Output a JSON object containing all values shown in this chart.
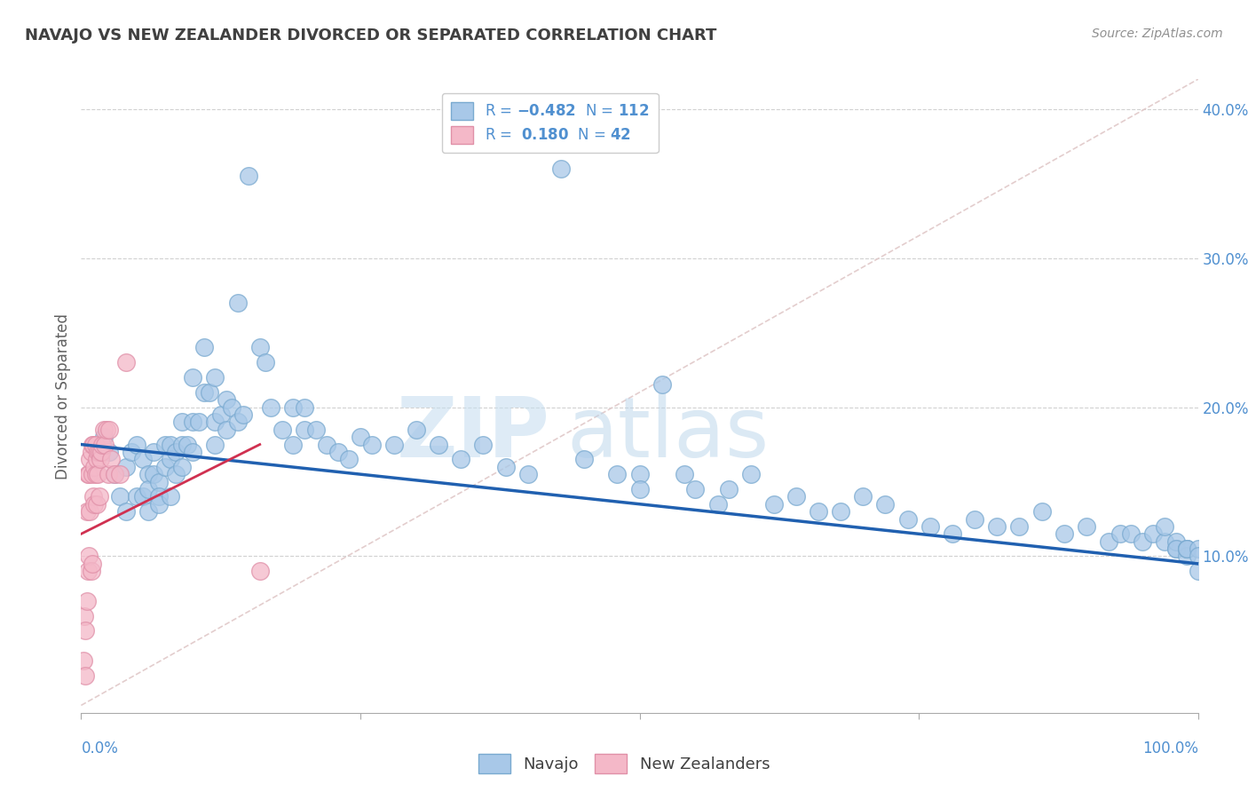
{
  "title": "NAVAJO VS NEW ZEALANDER DIVORCED OR SEPARATED CORRELATION CHART",
  "source": "Source: ZipAtlas.com",
  "ylabel": "Divorced or Separated",
  "xmin": 0.0,
  "xmax": 1.0,
  "ymin": -0.005,
  "ymax": 0.42,
  "navajo_R": -0.482,
  "navajo_N": 112,
  "nz_R": 0.18,
  "nz_N": 42,
  "navajo_color": "#a8c8e8",
  "nz_color": "#f4b8c8",
  "navajo_edge_color": "#7aaad0",
  "nz_edge_color": "#e090a8",
  "navajo_line_color": "#2060b0",
  "nz_line_color": "#d03050",
  "diagonal_color": "#e0c8c8",
  "watermark_zip": "#c8dff0",
  "watermark_atlas": "#b0cce0",
  "background_color": "#ffffff",
  "grid_color": "#cccccc",
  "title_color": "#404040",
  "axis_label_color": "#5090d0",
  "navajo_x": [
    0.02,
    0.025,
    0.03,
    0.035,
    0.04,
    0.04,
    0.045,
    0.05,
    0.05,
    0.055,
    0.055,
    0.06,
    0.06,
    0.06,
    0.065,
    0.065,
    0.07,
    0.07,
    0.07,
    0.075,
    0.075,
    0.08,
    0.08,
    0.08,
    0.085,
    0.085,
    0.09,
    0.09,
    0.09,
    0.095,
    0.1,
    0.1,
    0.1,
    0.105,
    0.11,
    0.11,
    0.115,
    0.12,
    0.12,
    0.12,
    0.125,
    0.13,
    0.13,
    0.135,
    0.14,
    0.14,
    0.145,
    0.15,
    0.16,
    0.165,
    0.17,
    0.18,
    0.19,
    0.19,
    0.2,
    0.2,
    0.21,
    0.22,
    0.23,
    0.24,
    0.25,
    0.26,
    0.28,
    0.3,
    0.32,
    0.34,
    0.36,
    0.38,
    0.4,
    0.43,
    0.45,
    0.48,
    0.5,
    0.5,
    0.52,
    0.54,
    0.55,
    0.57,
    0.58,
    0.6,
    0.62,
    0.64,
    0.66,
    0.68,
    0.7,
    0.72,
    0.74,
    0.76,
    0.78,
    0.8,
    0.82,
    0.84,
    0.86,
    0.88,
    0.9,
    0.92,
    0.93,
    0.94,
    0.95,
    0.96,
    0.97,
    0.97,
    0.98,
    0.98,
    0.98,
    0.99,
    0.99,
    0.99,
    0.99,
    1.0,
    1.0,
    1.0
  ],
  "navajo_y": [
    0.18,
    0.17,
    0.155,
    0.14,
    0.16,
    0.13,
    0.17,
    0.175,
    0.14,
    0.165,
    0.14,
    0.155,
    0.145,
    0.13,
    0.17,
    0.155,
    0.15,
    0.14,
    0.135,
    0.175,
    0.16,
    0.175,
    0.165,
    0.14,
    0.17,
    0.155,
    0.19,
    0.175,
    0.16,
    0.175,
    0.22,
    0.19,
    0.17,
    0.19,
    0.24,
    0.21,
    0.21,
    0.22,
    0.19,
    0.175,
    0.195,
    0.205,
    0.185,
    0.2,
    0.27,
    0.19,
    0.195,
    0.355,
    0.24,
    0.23,
    0.2,
    0.185,
    0.2,
    0.175,
    0.2,
    0.185,
    0.185,
    0.175,
    0.17,
    0.165,
    0.18,
    0.175,
    0.175,
    0.185,
    0.175,
    0.165,
    0.175,
    0.16,
    0.155,
    0.36,
    0.165,
    0.155,
    0.155,
    0.145,
    0.215,
    0.155,
    0.145,
    0.135,
    0.145,
    0.155,
    0.135,
    0.14,
    0.13,
    0.13,
    0.14,
    0.135,
    0.125,
    0.12,
    0.115,
    0.125,
    0.12,
    0.12,
    0.13,
    0.115,
    0.12,
    0.11,
    0.115,
    0.115,
    0.11,
    0.115,
    0.11,
    0.12,
    0.105,
    0.11,
    0.105,
    0.105,
    0.1,
    0.105,
    0.105,
    0.105,
    0.1,
    0.09
  ],
  "nz_x": [
    0.002,
    0.003,
    0.004,
    0.004,
    0.005,
    0.005,
    0.006,
    0.006,
    0.007,
    0.007,
    0.008,
    0.008,
    0.009,
    0.009,
    0.01,
    0.01,
    0.01,
    0.011,
    0.011,
    0.012,
    0.012,
    0.013,
    0.013,
    0.014,
    0.014,
    0.015,
    0.015,
    0.016,
    0.016,
    0.017,
    0.018,
    0.019,
    0.02,
    0.021,
    0.023,
    0.024,
    0.025,
    0.027,
    0.03,
    0.035,
    0.04,
    0.16
  ],
  "nz_y": [
    0.03,
    0.06,
    0.02,
    0.05,
    0.13,
    0.07,
    0.155,
    0.09,
    0.155,
    0.1,
    0.165,
    0.13,
    0.17,
    0.09,
    0.175,
    0.155,
    0.095,
    0.175,
    0.14,
    0.16,
    0.135,
    0.175,
    0.155,
    0.165,
    0.135,
    0.17,
    0.155,
    0.17,
    0.14,
    0.165,
    0.17,
    0.175,
    0.185,
    0.175,
    0.185,
    0.155,
    0.185,
    0.165,
    0.155,
    0.155,
    0.23,
    0.09
  ],
  "navajo_line_x0": 0.0,
  "navajo_line_x1": 1.0,
  "navajo_line_y0": 0.175,
  "navajo_line_y1": 0.095,
  "nz_line_x0": 0.0,
  "nz_line_x1": 0.16,
  "nz_line_y0": 0.115,
  "nz_line_y1": 0.175
}
